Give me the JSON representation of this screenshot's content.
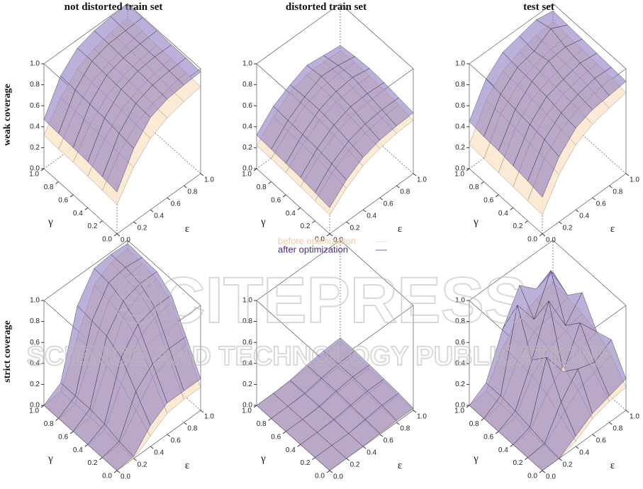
{
  "watermark": {
    "title": "SCITEPRESS",
    "subtitle": "SCIENCE AND TECHNOLOGY PUBLICATIONS"
  },
  "chart_data": [
    {
      "type": "surface",
      "title": "not distorted train set",
      "zlabel": "weak coverage",
      "xlabel": "ε",
      "ylabel": "γ",
      "x": [
        0,
        0.2,
        0.4,
        0.6,
        0.8,
        1
      ],
      "y": [
        0,
        0.2,
        0.4,
        0.6,
        0.8,
        1
      ],
      "xlim": [
        0,
        1
      ],
      "ylim": [
        0,
        1
      ],
      "zlim": [
        0,
        1
      ],
      "xticks": [
        {
          "value": 0,
          "label": "0.0"
        },
        0.2,
        0.4,
        0.6,
        0.8,
        {
          "value": 1,
          "label": "1.0"
        }
      ],
      "yticks": [
        {
          "value": 0,
          "label": "0.0"
        },
        0.2,
        0.4,
        0.6,
        0.8,
        {
          "value": 1,
          "label": "1.0"
        }
      ],
      "zticks": [
        {
          "value": 0,
          "label": "0.0"
        },
        0.2,
        0.4,
        0.6,
        0.8,
        {
          "value": 1,
          "label": "1.0"
        }
      ],
      "series": [
        {
          "name": "before optimization",
          "color": "#fbe6cc",
          "values": [
            [
              0.28,
              0.52,
              0.68,
              0.76,
              0.8,
              0.83
            ],
            [
              0.29,
              0.53,
              0.69,
              0.77,
              0.81,
              0.84
            ],
            [
              0.3,
              0.54,
              0.7,
              0.78,
              0.82,
              0.85
            ],
            [
              0.31,
              0.55,
              0.71,
              0.79,
              0.83,
              0.85
            ],
            [
              0.31,
              0.56,
              0.72,
              0.79,
              0.83,
              0.86
            ],
            [
              0.32,
              0.56,
              0.72,
              0.8,
              0.84,
              0.86
            ]
          ]
        },
        {
          "name": "after optimization",
          "color": "#8e7bc0",
          "values": [
            [
              0.4,
              0.7,
              0.88,
              0.94,
              0.96,
              0.97
            ],
            [
              0.42,
              0.72,
              0.89,
              0.95,
              0.97,
              0.98
            ],
            [
              0.44,
              0.74,
              0.9,
              0.96,
              0.98,
              0.98
            ],
            [
              0.45,
              0.75,
              0.91,
              0.96,
              0.98,
              0.99
            ],
            [
              0.46,
              0.76,
              0.92,
              0.97,
              0.98,
              0.99
            ],
            [
              0.47,
              0.77,
              0.92,
              0.97,
              0.99,
              0.99
            ]
          ]
        }
      ]
    },
    {
      "type": "surface",
      "title": "distorted train set",
      "xlabel": "ε",
      "ylabel": "γ",
      "x": [
        0,
        0.2,
        0.4,
        0.6,
        0.8,
        1
      ],
      "y": [
        0,
        0.2,
        0.4,
        0.6,
        0.8,
        1
      ],
      "xlim": [
        0,
        1
      ],
      "ylim": [
        0,
        1
      ],
      "zlim": [
        0,
        1
      ],
      "xticks": [
        {
          "value": 0,
          "label": "0.0"
        },
        0.2,
        0.4,
        0.6,
        0.8,
        {
          "value": 1,
          "label": "1.0"
        }
      ],
      "yticks": [
        {
          "value": 0,
          "label": "0.0"
        },
        0.2,
        0.4,
        0.6,
        0.8,
        {
          "value": 1,
          "label": "1.0"
        }
      ],
      "zticks": [
        {
          "value": 0,
          "label": "0.0"
        },
        0.2,
        0.4,
        0.6,
        0.8,
        {
          "value": 1,
          "label": "1.0"
        }
      ],
      "series": [
        {
          "name": "before optimization",
          "color": "#fbe6cc",
          "values": [
            [
              0.18,
              0.32,
              0.42,
              0.47,
              0.5,
              0.51
            ],
            [
              0.19,
              0.34,
              0.44,
              0.49,
              0.52,
              0.53
            ],
            [
              0.2,
              0.35,
              0.46,
              0.52,
              0.54,
              0.55
            ],
            [
              0.21,
              0.36,
              0.48,
              0.54,
              0.56,
              0.56
            ],
            [
              0.22,
              0.37,
              0.49,
              0.55,
              0.57,
              0.56
            ],
            [
              0.22,
              0.38,
              0.5,
              0.55,
              0.56,
              0.55
            ]
          ]
        },
        {
          "name": "after optimization",
          "color": "#8e7bc0",
          "values": [
            [
              0.25,
              0.4,
              0.5,
              0.55,
              0.57,
              0.58
            ],
            [
              0.27,
              0.43,
              0.53,
              0.58,
              0.6,
              0.6
            ],
            [
              0.29,
              0.45,
              0.56,
              0.62,
              0.63,
              0.62
            ],
            [
              0.3,
              0.46,
              0.58,
              0.64,
              0.66,
              0.63
            ],
            [
              0.31,
              0.47,
              0.58,
              0.66,
              0.65,
              0.62
            ],
            [
              0.32,
              0.48,
              0.57,
              0.64,
              0.62,
              0.6
            ]
          ]
        }
      ]
    },
    {
      "type": "surface",
      "title": "test set",
      "xlabel": "ε",
      "ylabel": "γ",
      "x": [
        0,
        0.2,
        0.4,
        0.6,
        0.8,
        1
      ],
      "y": [
        0,
        0.2,
        0.4,
        0.6,
        0.8,
        1
      ],
      "xlim": [
        0,
        1
      ],
      "ylim": [
        0,
        1
      ],
      "zlim": [
        0,
        1
      ],
      "xticks": [
        {
          "value": 0,
          "label": "0.0"
        },
        0.2,
        0.4,
        0.6,
        0.8,
        {
          "value": 1,
          "label": "1.0"
        }
      ],
      "yticks": [
        {
          "value": 0,
          "label": "0.0"
        },
        0.2,
        0.4,
        0.6,
        0.8,
        {
          "value": 1,
          "label": "1.0"
        }
      ],
      "zticks": [
        {
          "value": 0,
          "label": "0.0"
        },
        0.2,
        0.4,
        0.6,
        0.8,
        {
          "value": 1,
          "label": "1.0"
        }
      ],
      "series": [
        {
          "name": "before optimization",
          "color": "#fbe6cc",
          "values": [
            [
              0.18,
              0.45,
              0.62,
              0.7,
              0.74,
              0.77
            ],
            [
              0.19,
              0.48,
              0.64,
              0.72,
              0.76,
              0.79
            ],
            [
              0.2,
              0.5,
              0.66,
              0.74,
              0.78,
              0.8
            ],
            [
              0.21,
              0.52,
              0.68,
              0.75,
              0.79,
              0.81
            ],
            [
              0.22,
              0.53,
              0.69,
              0.76,
              0.8,
              0.82
            ],
            [
              0.23,
              0.54,
              0.7,
              0.77,
              0.81,
              0.83
            ]
          ]
        },
        {
          "name": "after optimization",
          "color": "#8e7bc0",
          "values": [
            [
              0.35,
              0.62,
              0.78,
              0.84,
              0.86,
              0.88
            ],
            [
              0.38,
              0.66,
              0.8,
              0.86,
              0.9,
              0.89
            ],
            [
              0.4,
              0.68,
              0.83,
              0.88,
              0.92,
              0.9
            ],
            [
              0.42,
              0.7,
              0.85,
              0.93,
              0.95,
              0.91
            ],
            [
              0.43,
              0.72,
              0.86,
              0.9,
              1.0,
              0.92
            ],
            [
              0.45,
              0.74,
              0.88,
              0.92,
              0.96,
              0.93
            ]
          ]
        }
      ]
    },
    {
      "type": "surface",
      "zlabel": "strict coverage",
      "xlabel": "ε",
      "ylabel": "γ",
      "x": [
        0,
        0.2,
        0.4,
        0.6,
        0.8,
        1
      ],
      "y": [
        0,
        0.2,
        0.4,
        0.6,
        0.8,
        1
      ],
      "xlim": [
        0,
        1
      ],
      "ylim": [
        0,
        1
      ],
      "zlim": [
        0,
        1
      ],
      "xticks": [
        {
          "value": 0,
          "label": "0.0"
        },
        0.2,
        0.4,
        0.6,
        0.8,
        {
          "value": 1,
          "label": "1.0"
        }
      ],
      "yticks": [
        {
          "value": 0,
          "label": "0.0"
        },
        0.2,
        0.4,
        0.6,
        0.8,
        {
          "value": 1,
          "label": "1.0"
        }
      ],
      "zticks": [
        {
          "value": 0,
          "label": "0.0"
        },
        0.2,
        0.4,
        0.6,
        0.8,
        {
          "value": 1,
          "label": "1.0"
        }
      ],
      "series": [
        {
          "name": "before optimization",
          "color": "#fbe6cc",
          "values": [
            [
              0,
              0,
              0.1,
              0.2,
              0.22,
              0.22
            ],
            [
              0,
              0.01,
              0.22,
              0.42,
              0.48,
              0.5
            ],
            [
              0,
              0.02,
              0.35,
              0.65,
              0.75,
              0.78
            ],
            [
              0,
              0.02,
              0.4,
              0.75,
              0.85,
              0.88
            ],
            [
              0,
              0.02,
              0.42,
              0.78,
              0.88,
              0.9
            ],
            [
              0,
              0.02,
              0.42,
              0.8,
              0.9,
              0.92
            ]
          ]
        },
        {
          "name": "after optimization",
          "color": "#8e7bc0",
          "values": [
            [
              0,
              0.02,
              0.2,
              0.3,
              0.3,
              0.3
            ],
            [
              0,
              0.04,
              0.4,
              0.55,
              0.58,
              0.58
            ],
            [
              0,
              0.08,
              0.6,
              0.8,
              0.85,
              0.85
            ],
            [
              0,
              0.1,
              0.68,
              0.9,
              0.95,
              0.95
            ],
            [
              0,
              0.1,
              0.7,
              0.95,
              0.98,
              0.96
            ],
            [
              0,
              0.1,
              0.72,
              0.96,
              0.98,
              0.97
            ]
          ]
        }
      ]
    },
    {
      "type": "surface",
      "xlabel": "ε",
      "ylabel": "γ",
      "x": [
        0,
        0.2,
        0.4,
        0.6,
        0.8,
        1
      ],
      "y": [
        0,
        0.2,
        0.4,
        0.6,
        0.8,
        1
      ],
      "xlim": [
        0,
        1
      ],
      "ylim": [
        0,
        1
      ],
      "zlim": [
        0,
        1
      ],
      "xticks": [
        {
          "value": 0,
          "label": "0.0"
        },
        0.2,
        0.4,
        0.6,
        0.8,
        {
          "value": 1,
          "label": "1.0"
        }
      ],
      "yticks": [
        {
          "value": 0,
          "label": "0.0"
        },
        0.2,
        0.4,
        0.6,
        0.8,
        {
          "value": 1,
          "label": "1.0"
        }
      ],
      "zticks": [
        {
          "value": 0,
          "label": "0.0"
        },
        0.2,
        0.4,
        0.6,
        0.8,
        {
          "value": 1,
          "label": "1.0"
        }
      ],
      "series": [
        {
          "name": "before optimization",
          "color": "#fbe6cc",
          "values": [
            [
              0,
              0,
              0,
              0,
              0.01,
              0.01
            ],
            [
              0,
              0,
              0,
              0.01,
              0.02,
              0.02
            ],
            [
              0,
              0,
              0,
              0.01,
              0.02,
              0.03
            ],
            [
              0,
              0,
              0,
              0.02,
              0.03,
              0.03
            ],
            [
              0,
              0,
              0,
              0.02,
              0.03,
              0.04
            ],
            [
              0,
              0,
              0,
              0.02,
              0.03,
              0.04
            ]
          ]
        },
        {
          "name": "after optimization",
          "color": "#8e7bc0",
          "values": [
            [
              0,
              0,
              0,
              0.01,
              0.02,
              0.02
            ],
            [
              0,
              0,
              0,
              0.02,
              0.04,
              0.04
            ],
            [
              0,
              0,
              0.01,
              0.03,
              0.05,
              0.05
            ],
            [
              0,
              0,
              0.01,
              0.04,
              0.06,
              0.06
            ],
            [
              0,
              0,
              0.01,
              0.04,
              0.06,
              0.07
            ],
            [
              0,
              0,
              0.01,
              0.04,
              0.06,
              0.07
            ]
          ]
        }
      ]
    },
    {
      "type": "surface",
      "xlabel": "ε",
      "ylabel": "γ",
      "x": [
        0,
        0.2,
        0.4,
        0.6,
        0.8,
        1
      ],
      "y": [
        0,
        0.2,
        0.4,
        0.6,
        0.8,
        1
      ],
      "xlim": [
        0,
        1
      ],
      "ylim": [
        0,
        1
      ],
      "zlim": [
        0,
        1
      ],
      "xticks": [
        {
          "value": 0,
          "label": "0.0"
        },
        0.2,
        0.4,
        0.6,
        0.8,
        {
          "value": 1,
          "label": "1.0"
        }
      ],
      "yticks": [
        {
          "value": 0,
          "label": "0.0"
        },
        0.2,
        0.4,
        0.6,
        0.8,
        {
          "value": 1,
          "label": "1.0"
        }
      ],
      "zticks": [
        {
          "value": 0,
          "label": "0.0"
        },
        0.2,
        0.4,
        0.6,
        0.8,
        {
          "value": 1,
          "label": "1.0"
        }
      ],
      "series": [
        {
          "name": "before optimization",
          "color": "#fbe6cc",
          "values": [
            [
              0,
              0,
              0.05,
              0.15,
              0.2,
              0.22
            ],
            [
              0,
              0,
              0.15,
              0.3,
              0.35,
              0.4
            ],
            [
              0,
              0.01,
              0.25,
              0.4,
              0.45,
              0.5
            ],
            [
              0,
              0.02,
              0.3,
              0.45,
              0.5,
              0.55
            ],
            [
              0,
              0.02,
              0.32,
              0.48,
              0.52,
              0.58
            ],
            [
              0,
              0.02,
              0.33,
              0.5,
              0.55,
              0.6
            ]
          ]
        },
        {
          "name": "after optimization",
          "color": "#8e7bc0",
          "values": [
            [
              0,
              0,
              0.1,
              0.2,
              0.25,
              0.3
            ],
            [
              0,
              0.02,
              0.3,
              0.5,
              0.45,
              0.55
            ],
            [
              0,
              0.05,
              0.6,
              0.35,
              0.7,
              0.5
            ],
            [
              0,
              0.08,
              0.45,
              0.9,
              0.55,
              0.75
            ],
            [
              0,
              0.1,
              0.85,
              0.6,
              0.95,
              0.6
            ],
            [
              0,
              0.1,
              0.5,
              0.8,
              0.65,
              0.7
            ]
          ]
        }
      ]
    }
  ]
}
